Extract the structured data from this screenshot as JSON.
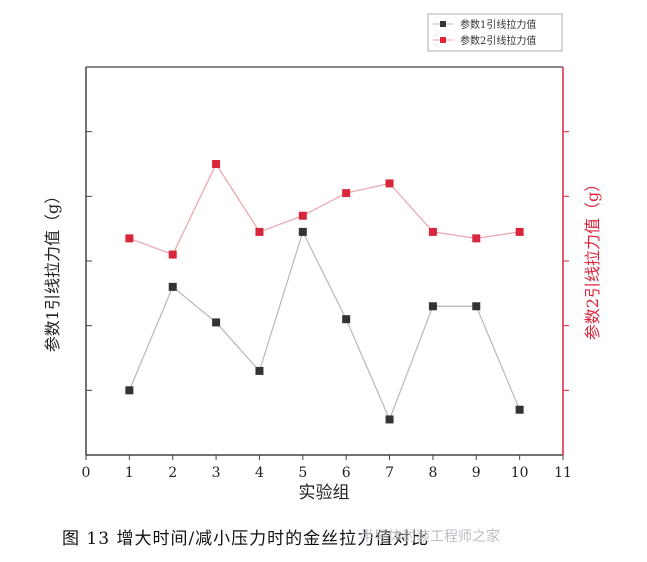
{
  "chart_data": {
    "type": "line",
    "x": [
      1,
      2,
      3,
      4,
      5,
      6,
      7,
      8,
      9,
      10
    ],
    "xlabel": "实验组",
    "xlim": [
      0,
      11
    ],
    "xticks": [
      0,
      1,
      2,
      3,
      4,
      5,
      6,
      7,
      8,
      9,
      10,
      11
    ],
    "ylabel_left": "参数1引线拉力值（g）",
    "ylabel_right": "参数2引线拉力值（g）",
    "ylim_left": [
      0,
      6
    ],
    "ylim_right": [
      0,
      6
    ],
    "grid": false,
    "legend_position": "top-right",
    "series": [
      {
        "name": "参数1引线拉力值",
        "axis": "left",
        "color": "#333333",
        "line_color": "#b8b8b8",
        "values": [
          1.0,
          2.6,
          2.05,
          1.3,
          3.45,
          2.1,
          0.55,
          2.3,
          2.3,
          0.7
        ]
      },
      {
        "name": "参数2引线拉力值",
        "axis": "right",
        "color": "#d9263c",
        "line_color": "#eca3ad",
        "values": [
          3.35,
          3.1,
          4.5,
          3.45,
          3.7,
          4.05,
          4.2,
          3.45,
          3.35,
          3.45
        ]
      }
    ]
  },
  "caption": {
    "text": "图 13  增大时间/减小压力时的金丝拉力值对比",
    "watermark": "半导体封装工程师之家"
  }
}
